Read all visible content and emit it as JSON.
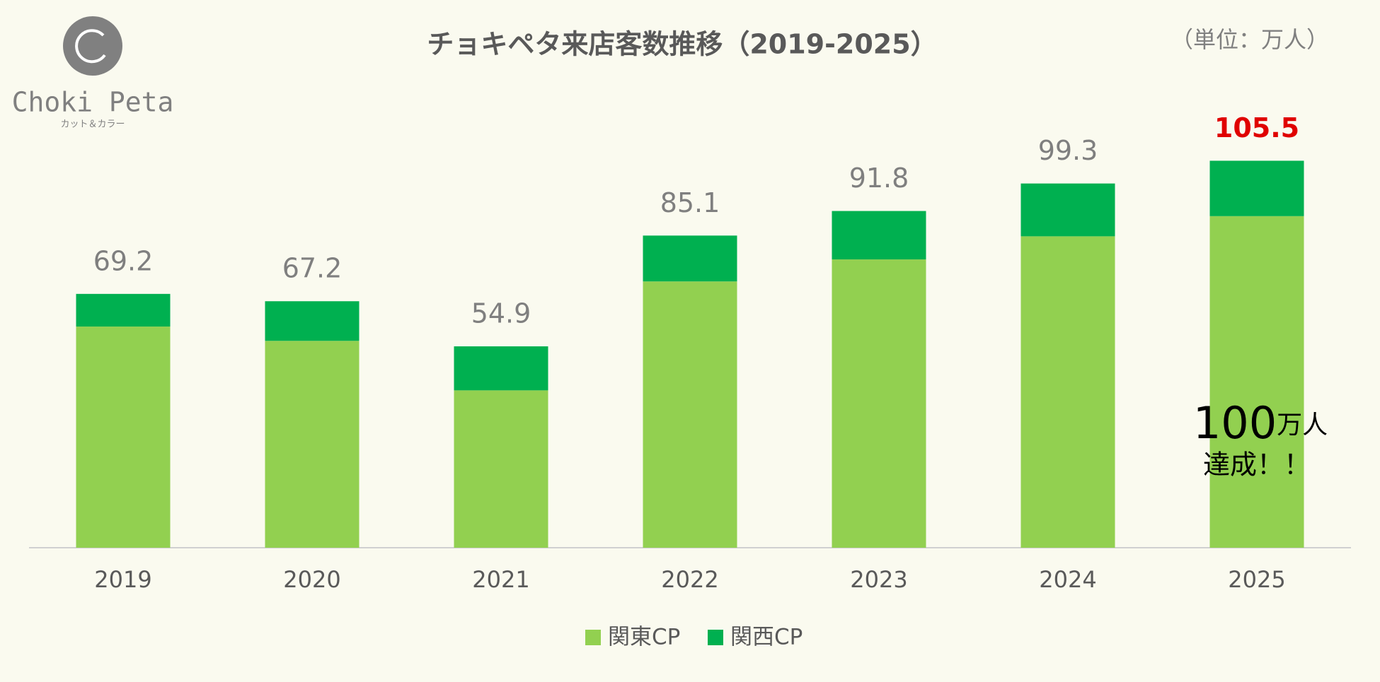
{
  "logo": {
    "name": "Choki Peta",
    "tagline": "カット＆カラー"
  },
  "chart_data": {
    "type": "stacked-bar",
    "title": "チョキペタ来店客数推移（2019-2025）",
    "unit_note": "（単位：万人）",
    "categories": [
      "2019",
      "2020",
      "2021",
      "2022",
      "2023",
      "2024",
      "2025"
    ],
    "series": [
      {
        "name": "関東CP",
        "color": "#92d050",
        "values": [
          60.3,
          56.4,
          42.9,
          72.6,
          78.6,
          84.9,
          90.4
        ]
      },
      {
        "name": "関西CP",
        "color": "#00b050",
        "values": [
          8.9,
          10.8,
          12.0,
          12.5,
          13.2,
          14.4,
          15.1
        ]
      }
    ],
    "totals": [
      69.2,
      67.2,
      54.9,
      85.1,
      91.8,
      99.3,
      105.5
    ],
    "annotation": {
      "number": "100",
      "unit": "万人",
      "text": "達成！！"
    }
  }
}
